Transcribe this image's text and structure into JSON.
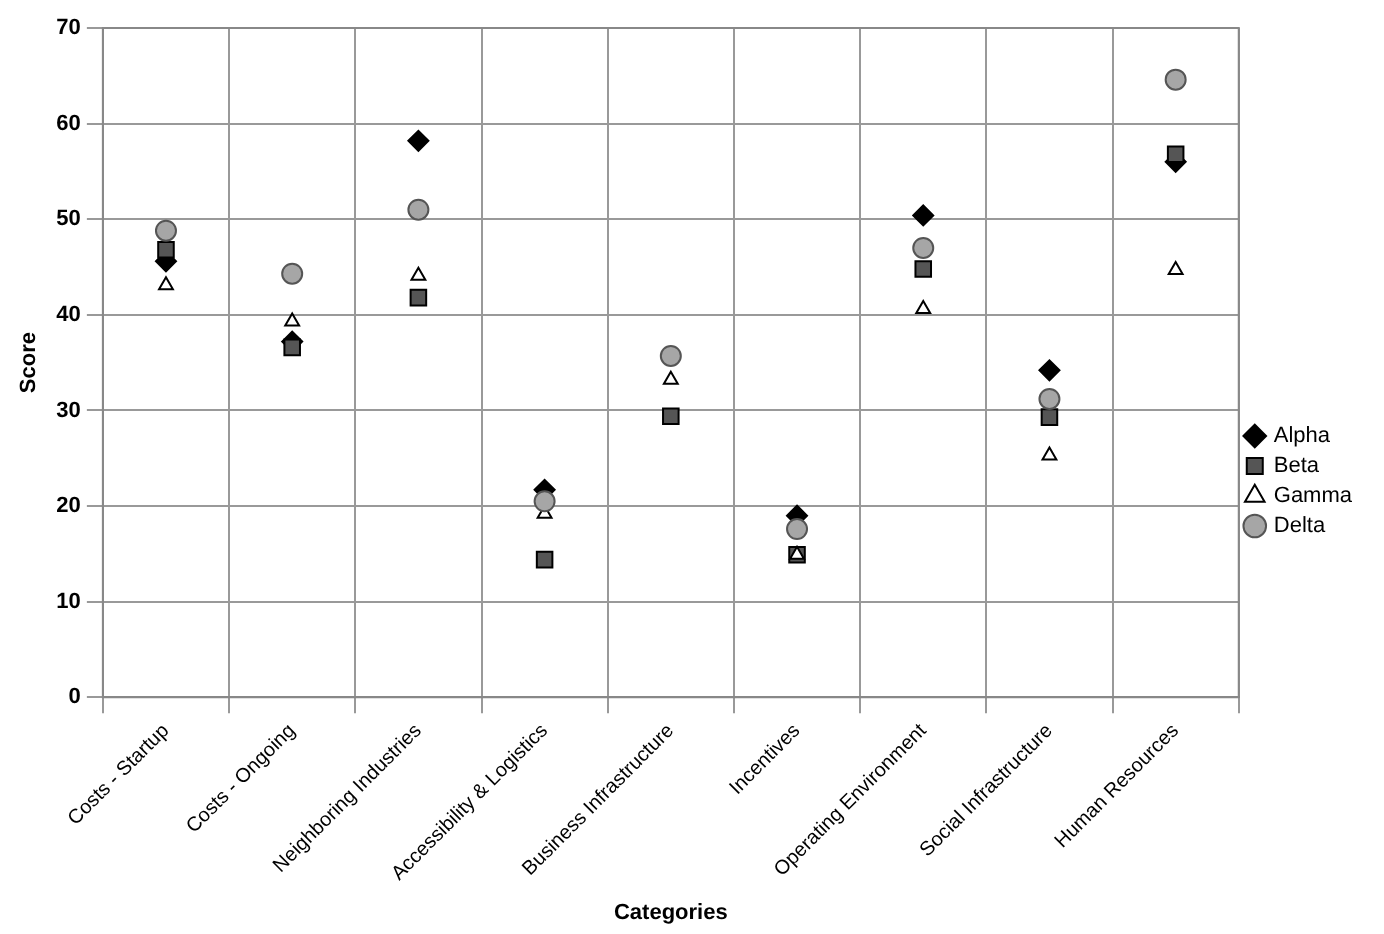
{
  "chart_data": {
    "type": "scatter",
    "xlabel": "Categories",
    "ylabel": "Score",
    "categories": [
      "Costs - Startup",
      "Costs - Ongoing",
      "Neighboring Industries",
      "Accessibility & Logistics",
      "Business Infrastructure",
      "Incentives",
      "Operating Environment",
      "Social Infrastructure",
      "Human Resources"
    ],
    "series": [
      {
        "name": "Alpha",
        "color": "#000000",
        "marker": "diamond",
        "values": [
          45.6,
          37.2,
          58.2,
          21.7,
          null,
          19.0,
          50.4,
          34.2,
          56.0
        ]
      },
      {
        "name": "Beta",
        "color": "#555555",
        "marker": "square",
        "values": [
          46.8,
          36.6,
          41.8,
          14.4,
          29.4,
          14.9,
          44.8,
          29.3,
          56.8
        ]
      },
      {
        "name": "Gamma",
        "color": "#ffffff",
        "marker": "triangle",
        "values": [
          43.1,
          39.3,
          44.1,
          19.2,
          33.2,
          14.9,
          40.6,
          25.3,
          44.7
        ]
      },
      {
        "name": "Delta",
        "color": "#a6a6a6",
        "marker": "circle",
        "values": [
          48.8,
          44.3,
          51.0,
          20.5,
          35.7,
          17.6,
          47.0,
          31.2,
          64.6
        ]
      }
    ],
    "ylim": [
      0,
      70
    ],
    "yticks": [
      0,
      10,
      20,
      30,
      40,
      50,
      60,
      70
    ],
    "grid": true,
    "legend": "right"
  }
}
